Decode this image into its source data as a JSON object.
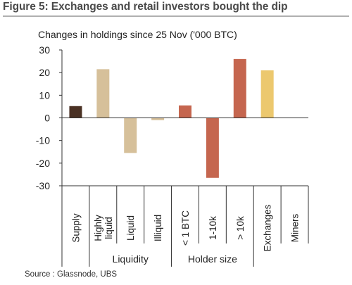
{
  "figure": {
    "title": "Figure 5: Exchanges and retail investors bought the dip",
    "source": "Source : Glassnode, UBS"
  },
  "chart_data": {
    "type": "bar",
    "subtitle": "Changes in holdings since 25 Nov ('000 BTC)",
    "categories": [
      "Supply",
      "Highly liquid",
      "Liquid",
      "Illiquid",
      "< 1 BTC",
      "1-10k",
      "> 10k",
      "Exchanges",
      "Miners"
    ],
    "category_lines": [
      [
        "Supply"
      ],
      [
        "Highly",
        "liquid"
      ],
      [
        "Liquid"
      ],
      [
        "Illiquid"
      ],
      [
        "< 1 BTC"
      ],
      [
        "1-10k"
      ],
      [
        "> 10k"
      ],
      [
        "Exchanges"
      ],
      [
        "Miners"
      ]
    ],
    "values": [
      5.2,
      21.5,
      -15.5,
      -1.0,
      5.5,
      -26.5,
      26.0,
      21.0,
      0
    ],
    "colors": [
      "#4a3124",
      "#d6c09a",
      "#d6c09a",
      "#d6c09a",
      "#c5664f",
      "#c5664f",
      "#c5664f",
      "#ecc86e",
      "#ecc86e"
    ],
    "ylim": [
      -30,
      30
    ],
    "yticks": [
      30,
      20,
      10,
      0,
      -10,
      -20,
      -30
    ],
    "groups": [
      {
        "label": "Liquidity",
        "from": 1,
        "to": 3
      },
      {
        "label": "Holder size",
        "from": 4,
        "to": 6
      }
    ],
    "grid": false
  }
}
